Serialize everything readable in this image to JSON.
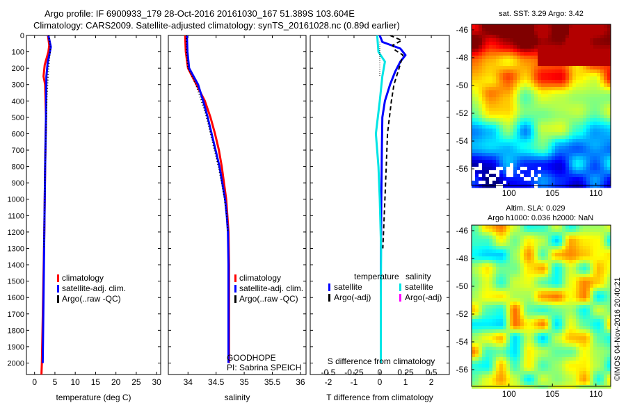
{
  "header": {
    "line1": "Argo profile: IF 6900933_179 28-Oct-2016 20161030_167 51.389S 103.604E",
    "line2": "Climatology: CARS2009. Satellite-adjusted climatology: synTS_20161028.nc (0.89d earlier)"
  },
  "side_label": "©IMOS 04-Nov-2016 20:40:21",
  "chart_data": [
    {
      "type": "line",
      "panel": "temperature",
      "xlabel": "temperature (deg C)",
      "ylabel": "",
      "xlim": [
        -2,
        31
      ],
      "ylim": [
        2070,
        0
      ],
      "xticks": [
        0,
        5,
        10,
        15,
        20,
        25,
        30
      ],
      "yticks": [
        0,
        100,
        200,
        300,
        400,
        500,
        600,
        700,
        800,
        900,
        1000,
        1100,
        1200,
        1300,
        1400,
        1500,
        1600,
        1700,
        1800,
        1900,
        2000
      ],
      "legend": [
        "climatology",
        "satellite-adj. clim.",
        "Argo(..raw -QC)"
      ],
      "legend_colors": [
        "#ff0000",
        "#0000ff",
        "#000000"
      ],
      "series": [
        {
          "name": "climatology",
          "color": "#ff0000",
          "points": [
            [
              3.3,
              0
            ],
            [
              3.6,
              60
            ],
            [
              3.4,
              100
            ],
            [
              2.5,
              180
            ],
            [
              2.2,
              250
            ],
            [
              2.6,
              300
            ],
            [
              2.8,
              500
            ],
            [
              2.6,
              800
            ],
            [
              2.4,
              1200
            ],
            [
              2.1,
              1600
            ],
            [
              1.8,
              2000
            ],
            [
              1.7,
              2070
            ]
          ]
        },
        {
          "name": "satellite-adj. clim.",
          "color": "#0000ff",
          "points": [
            [
              3.4,
              0
            ],
            [
              4.0,
              70
            ],
            [
              3.7,
              110
            ],
            [
              3.2,
              170
            ],
            [
              2.9,
              250
            ],
            [
              2.8,
              500
            ],
            [
              2.6,
              800
            ],
            [
              2.4,
              1200
            ],
            [
              2.2,
              1600
            ],
            [
              2.0,
              2000
            ]
          ]
        },
        {
          "name": "Argo(..raw -QC)",
          "color": "#000000",
          "points": [
            [
              3.5,
              0
            ],
            [
              3.9,
              80
            ],
            [
              3.6,
              150
            ],
            [
              3.3,
              250
            ],
            [
              3.0,
              400
            ],
            [
              2.8,
              600
            ],
            [
              2.6,
              800
            ],
            [
              2.5,
              1000
            ],
            [
              2.3,
              1300
            ]
          ]
        }
      ]
    },
    {
      "type": "line",
      "panel": "salinity",
      "xlabel": "salinity",
      "ylabel": "",
      "xlim": [
        33.65,
        36.1
      ],
      "ylim": [
        2070,
        0
      ],
      "xticks": [
        34,
        34.5,
        35,
        35.5,
        36
      ],
      "legend": [
        "climatology",
        "satellite-adj. clim.",
        "Argo(..raw -QC)"
      ],
      "legend_colors": [
        "#ff0000",
        "#0000ff",
        "#000000"
      ],
      "annotation": [
        "GOODHOPE",
        "PI: Sabrina SPEICH"
      ],
      "series": [
        {
          "name": "climatology",
          "color": "#ff0000",
          "points": [
            [
              33.95,
              0
            ],
            [
              33.96,
              100
            ],
            [
              34.0,
              200
            ],
            [
              34.15,
              300
            ],
            [
              34.3,
              400
            ],
            [
              34.4,
              500
            ],
            [
              34.48,
              600
            ],
            [
              34.55,
              700
            ],
            [
              34.6,
              800
            ],
            [
              34.64,
              900
            ],
            [
              34.68,
              1000
            ],
            [
              34.7,
              1100
            ],
            [
              34.72,
              1200
            ],
            [
              34.73,
              1400
            ],
            [
              34.73,
              2000
            ]
          ]
        },
        {
          "name": "satellite-adj. clim.",
          "color": "#0000ff",
          "points": [
            [
              33.98,
              0
            ],
            [
              33.99,
              100
            ],
            [
              34.02,
              200
            ],
            [
              34.18,
              300
            ],
            [
              34.27,
              400
            ],
            [
              34.35,
              500
            ],
            [
              34.42,
              600
            ],
            [
              34.49,
              700
            ],
            [
              34.56,
              800
            ],
            [
              34.61,
              900
            ],
            [
              34.66,
              1000
            ],
            [
              34.69,
              1100
            ],
            [
              34.71,
              1200
            ],
            [
              34.72,
              1400
            ],
            [
              34.72,
              2000
            ]
          ]
        },
        {
          "name": "Argo(..raw -QC)",
          "color": "#000000",
          "points": [
            [
              33.97,
              0
            ],
            [
              33.97,
              100
            ],
            [
              34.0,
              200
            ],
            [
              34.14,
              300
            ],
            [
              34.24,
              400
            ],
            [
              34.33,
              500
            ],
            [
              34.4,
              600
            ],
            [
              34.47,
              700
            ],
            [
              34.54,
              800
            ],
            [
              34.6,
              900
            ],
            [
              34.65,
              1000
            ],
            [
              34.69,
              1100
            ],
            [
              34.71,
              1200
            ]
          ]
        }
      ]
    },
    {
      "type": "line",
      "panel": "difference",
      "xlabel": "T difference from climatology",
      "xlabel_top": "S difference from climatology",
      "xlim": [
        -2.7,
        2.7
      ],
      "ylim": [
        2070,
        0
      ],
      "xticks": [
        -2,
        -1,
        0,
        1,
        2
      ],
      "xticks_s_labels": [
        "-0.5",
        "-0.25",
        "0",
        "0.25",
        "0.5"
      ],
      "legend_titles": [
        "temperature",
        "salinity"
      ],
      "legend_left": [
        "satellite",
        "Argo(-adj)"
      ],
      "legend_left_colors": [
        "#0000ff",
        "#000000"
      ],
      "legend_right": [
        "satellite",
        "Argo(-adj)"
      ],
      "legend_right_colors": [
        "#00e5e5",
        "#ff00ff"
      ],
      "series": [
        {
          "name": "temperature satellite",
          "color": "#0000ff",
          "points": [
            [
              0.0,
              0
            ],
            [
              0.1,
              40
            ],
            [
              0.8,
              80
            ],
            [
              1.0,
              120
            ],
            [
              0.8,
              160
            ],
            [
              0.6,
              220
            ],
            [
              0.4,
              300
            ],
            [
              0.2,
              400
            ],
            [
              0.1,
              500
            ],
            [
              0.08,
              700
            ],
            [
              0.06,
              1000
            ],
            [
              0.04,
              1400
            ],
            [
              0.04,
              2000
            ]
          ]
        },
        {
          "name": "salinity satellite",
          "color": "#00e5e5",
          "points": [
            [
              -0.1,
              0
            ],
            [
              -0.05,
              100
            ],
            [
              0.2,
              160
            ],
            [
              0.1,
              250
            ],
            [
              0.0,
              400
            ],
            [
              -0.15,
              600
            ],
            [
              -0.05,
              800
            ],
            [
              0.0,
              1000
            ],
            [
              0.05,
              1300
            ],
            [
              0.04,
              1600
            ],
            [
              0.04,
              2000
            ]
          ]
        },
        {
          "name": "temperature Argo(-adj)",
          "color": "#000000",
          "points": [
            [
              0.4,
              0
            ],
            [
              0.85,
              30
            ],
            [
              0.5,
              60
            ],
            [
              0.6,
              90
            ],
            [
              0.9,
              120
            ],
            [
              0.75,
              200
            ],
            [
              0.55,
              300
            ],
            [
              0.45,
              400
            ],
            [
              0.3,
              600
            ],
            [
              0.25,
              800
            ],
            [
              0.2,
              1000
            ],
            [
              0.12,
              1300
            ]
          ]
        }
      ]
    },
    {
      "type": "heatmap",
      "panel": "sst-map",
      "title": "sat. SST: 3.29 Argo: 3.42",
      "xticks": [
        100,
        105,
        110
      ],
      "yticks": [
        -46,
        -48,
        -50,
        -52,
        -54,
        -56
      ],
      "xlim": [
        95.7,
        111.7
      ],
      "ylim": [
        -57.2,
        -45.6
      ]
    },
    {
      "type": "heatmap",
      "panel": "sla-map",
      "title": "Altim. SLA: 0.029",
      "subtitle": "Argo h1000: 0.036 h2000: NaN",
      "xticks": [
        100,
        105,
        110
      ],
      "yticks": [
        -46,
        -48,
        -50,
        -52,
        -54,
        -56
      ],
      "xlim": [
        95.7,
        111.7
      ],
      "ylim": [
        -57.2,
        -45.6
      ]
    }
  ]
}
